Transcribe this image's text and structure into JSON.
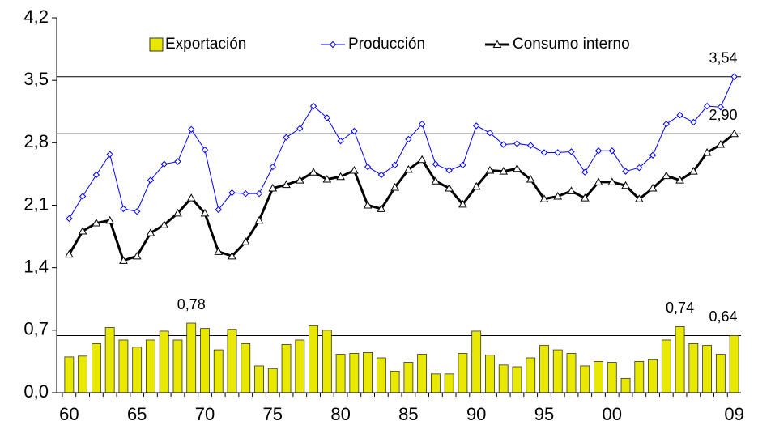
{
  "chart_data": {
    "type": "bar",
    "categories": [
      "60",
      null,
      null,
      null,
      null,
      "65",
      null,
      null,
      null,
      null,
      "70",
      null,
      null,
      null,
      null,
      "75",
      null,
      null,
      null,
      null,
      "80",
      null,
      null,
      null,
      null,
      "85",
      null,
      null,
      null,
      null,
      "90",
      null,
      null,
      null,
      null,
      "95",
      null,
      null,
      null,
      null,
      "00",
      null,
      null,
      null,
      null,
      null,
      null,
      null,
      null,
      "09"
    ],
    "ylim": [
      0,
      4.2
    ],
    "yticks": [
      {
        "value": 0,
        "label": "0,0"
      },
      {
        "value": 0.7,
        "label": "0,7"
      },
      {
        "value": 1.4,
        "label": "1,4"
      },
      {
        "value": 2.1,
        "label": "2,1"
      },
      {
        "value": 2.8,
        "label": "2,8"
      },
      {
        "value": 3.5,
        "label": "3,5"
      },
      {
        "value": 4.2,
        "label": "4,2"
      }
    ],
    "series": [
      {
        "name": "Exportación",
        "type": "bar",
        "color": "#e8e800",
        "values": [
          0.4,
          0.41,
          0.55,
          0.73,
          0.59,
          0.51,
          0.59,
          0.69,
          0.59,
          0.78,
          0.72,
          0.48,
          0.71,
          0.55,
          0.3,
          0.27,
          0.54,
          0.59,
          0.75,
          0.7,
          0.43,
          0.44,
          0.45,
          0.39,
          0.24,
          0.34,
          0.43,
          0.21,
          0.21,
          0.44,
          0.69,
          0.42,
          0.31,
          0.29,
          0.39,
          0.53,
          0.48,
          0.44,
          0.3,
          0.35,
          0.34,
          0.16,
          0.35,
          0.37,
          0.59,
          0.74,
          0.55,
          0.53,
          0.43,
          0.64
        ],
        "value_labels": [
          null,
          null,
          null,
          null,
          null,
          null,
          null,
          null,
          null,
          "0,78",
          null,
          null,
          null,
          null,
          null,
          null,
          null,
          null,
          null,
          null,
          null,
          null,
          null,
          null,
          null,
          null,
          null,
          null,
          null,
          null,
          null,
          null,
          null,
          null,
          null,
          null,
          null,
          null,
          null,
          null,
          null,
          null,
          null,
          null,
          null,
          "0,74",
          null,
          null,
          null,
          "0,64"
        ]
      },
      {
        "name": "Producción",
        "type": "line",
        "color": "#0000ff",
        "values": [
          1.95,
          2.2,
          2.44,
          2.67,
          2.06,
          2.03,
          2.38,
          2.56,
          2.59,
          2.95,
          2.72,
          2.05,
          2.24,
          2.23,
          2.23,
          2.53,
          2.86,
          2.96,
          3.21,
          3.08,
          2.82,
          2.93,
          2.53,
          2.44,
          2.55,
          2.84,
          3.01,
          2.56,
          2.49,
          2.55,
          2.99,
          2.91,
          2.78,
          2.79,
          2.77,
          2.69,
          2.69,
          2.7,
          2.47,
          2.71,
          2.71,
          2.48,
          2.52,
          2.66,
          3.01,
          3.11,
          3.03,
          3.21,
          3.2,
          3.54
        ],
        "value_labels": [
          null,
          null,
          null,
          null,
          null,
          null,
          null,
          null,
          null,
          null,
          null,
          null,
          null,
          null,
          null,
          null,
          null,
          null,
          null,
          null,
          null,
          null,
          null,
          null,
          null,
          null,
          null,
          null,
          null,
          null,
          null,
          null,
          null,
          null,
          null,
          null,
          null,
          null,
          null,
          null,
          null,
          null,
          null,
          null,
          null,
          null,
          null,
          null,
          null,
          "3,54"
        ]
      },
      {
        "name": "Consumo interno",
        "type": "line",
        "color": "#000000",
        "values": [
          1.55,
          1.81,
          1.9,
          1.93,
          1.48,
          1.53,
          1.79,
          1.88,
          2.01,
          2.18,
          2.01,
          1.58,
          1.53,
          1.69,
          1.93,
          2.29,
          2.33,
          2.38,
          2.47,
          2.39,
          2.42,
          2.49,
          2.1,
          2.06,
          2.3,
          2.5,
          2.61,
          2.37,
          2.29,
          2.11,
          2.31,
          2.49,
          2.48,
          2.51,
          2.39,
          2.17,
          2.2,
          2.26,
          2.18,
          2.36,
          2.36,
          2.32,
          2.17,
          2.29,
          2.43,
          2.38,
          2.48,
          2.69,
          2.78,
          2.9
        ],
        "value_labels": [
          null,
          null,
          null,
          null,
          null,
          null,
          null,
          null,
          null,
          null,
          null,
          null,
          null,
          null,
          null,
          null,
          null,
          null,
          null,
          null,
          null,
          null,
          null,
          null,
          null,
          null,
          null,
          null,
          null,
          null,
          null,
          null,
          null,
          null,
          null,
          null,
          null,
          null,
          null,
          null,
          null,
          null,
          null,
          null,
          null,
          null,
          null,
          null,
          null,
          "2,90"
        ]
      }
    ]
  }
}
